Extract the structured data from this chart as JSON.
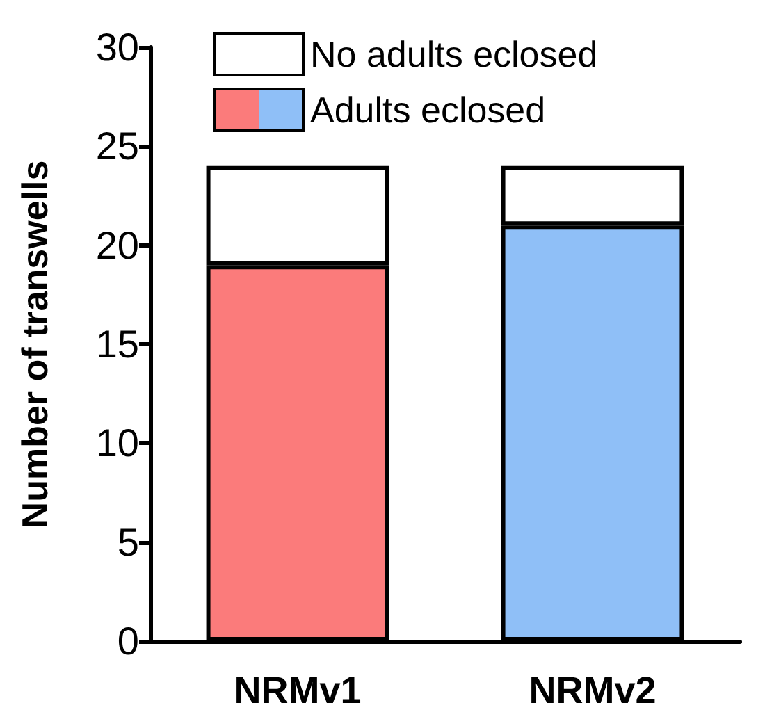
{
  "chart_data": {
    "type": "bar",
    "stacked": true,
    "ylabel": "Number of transwells",
    "categories": [
      "NRMv1",
      "NRMv2"
    ],
    "series": [
      {
        "name": "Adults eclosed",
        "colors": [
          "#fb7b7b",
          "#8fbff7"
        ],
        "values": [
          19,
          21
        ]
      },
      {
        "name": "No adults eclosed",
        "color": "#ffffff",
        "values": [
          5,
          3
        ]
      }
    ],
    "ylim": [
      0,
      30
    ],
    "yticks": [
      0,
      5,
      10,
      15,
      20,
      25,
      30
    ],
    "grid": false,
    "legend": "top left"
  }
}
